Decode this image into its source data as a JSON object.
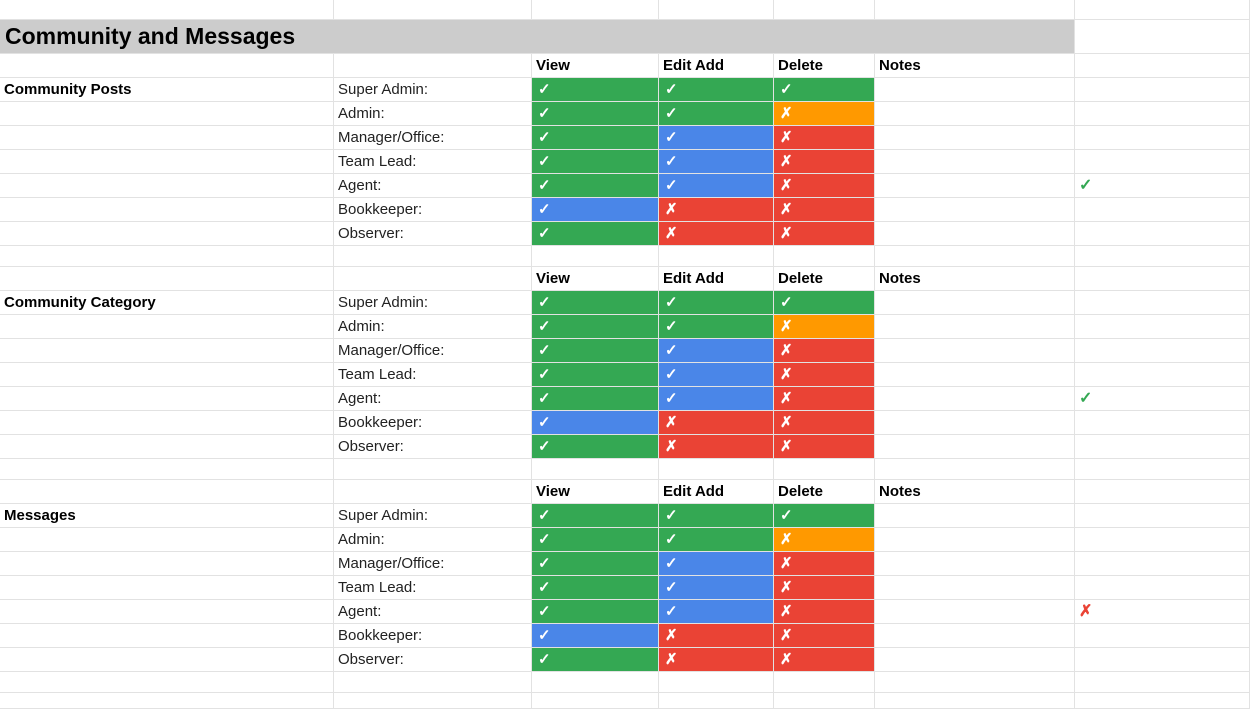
{
  "sheet": {
    "title": "Community and Messages",
    "column_headers": [
      "View",
      "Edit Add",
      "Delete",
      "Notes"
    ],
    "colors": {
      "allowed_full": "#34a853",
      "allowed_partial": "#4a86e8",
      "denied": "#ea4335",
      "denied_warning": "#ff9900",
      "header_band": "#cccccc"
    },
    "sections": [
      {
        "name": "Community Posts",
        "side_mark": "✓",
        "side_mark_color": "#34a853",
        "rows": [
          {
            "role": "Super Admin:",
            "view": "✓",
            "view_color": "green",
            "edit": "✓",
            "edit_color": "green",
            "delete": "✓",
            "delete_color": "green"
          },
          {
            "role": "Admin:",
            "view": "✓",
            "view_color": "green",
            "edit": "✓",
            "edit_color": "green",
            "delete": "✗",
            "delete_color": "orange"
          },
          {
            "role": "Manager/Office:",
            "view": "✓",
            "view_color": "green",
            "edit": "✓",
            "edit_color": "blue",
            "delete": "✗",
            "delete_color": "red"
          },
          {
            "role": "Team Lead:",
            "view": "✓",
            "view_color": "green",
            "edit": "✓",
            "edit_color": "blue",
            "delete": "✗",
            "delete_color": "red"
          },
          {
            "role": "Agent:",
            "view": "✓",
            "view_color": "green",
            "edit": "✓",
            "edit_color": "blue",
            "delete": "✗",
            "delete_color": "red"
          },
          {
            "role": "Bookkeeper:",
            "view": "✓",
            "view_color": "blue",
            "edit": "✗",
            "edit_color": "red",
            "delete": "✗",
            "delete_color": "red"
          },
          {
            "role": "Observer:",
            "view": "✓",
            "view_color": "green",
            "edit": "✗",
            "edit_color": "red",
            "delete": "✗",
            "delete_color": "red"
          }
        ]
      },
      {
        "name": "Community Category",
        "side_mark": "✓",
        "side_mark_color": "#34a853",
        "rows": [
          {
            "role": "Super Admin:",
            "view": "✓",
            "view_color": "green",
            "edit": "✓",
            "edit_color": "green",
            "delete": "✓",
            "delete_color": "green"
          },
          {
            "role": "Admin:",
            "view": "✓",
            "view_color": "green",
            "edit": "✓",
            "edit_color": "green",
            "delete": "✗",
            "delete_color": "orange"
          },
          {
            "role": "Manager/Office:",
            "view": "✓",
            "view_color": "green",
            "edit": "✓",
            "edit_color": "blue",
            "delete": "✗",
            "delete_color": "red"
          },
          {
            "role": "Team Lead:",
            "view": "✓",
            "view_color": "green",
            "edit": "✓",
            "edit_color": "blue",
            "delete": "✗",
            "delete_color": "red"
          },
          {
            "role": "Agent:",
            "view": "✓",
            "view_color": "green",
            "edit": "✓",
            "edit_color": "blue",
            "delete": "✗",
            "delete_color": "red"
          },
          {
            "role": "Bookkeeper:",
            "view": "✓",
            "view_color": "blue",
            "edit": "✗",
            "edit_color": "red",
            "delete": "✗",
            "delete_color": "red"
          },
          {
            "role": "Observer:",
            "view": "✓",
            "view_color": "green",
            "edit": "✗",
            "edit_color": "red",
            "delete": "✗",
            "delete_color": "red"
          }
        ]
      },
      {
        "name": "Messages",
        "side_mark": "✗",
        "side_mark_color": "#ea4335",
        "rows": [
          {
            "role": "Super Admin:",
            "view": "✓",
            "view_color": "green",
            "edit": "✓",
            "edit_color": "green",
            "delete": "✓",
            "delete_color": "green"
          },
          {
            "role": "Admin:",
            "view": "✓",
            "view_color": "green",
            "edit": "✓",
            "edit_color": "green",
            "delete": "✗",
            "delete_color": "orange"
          },
          {
            "role": "Manager/Office:",
            "view": "✓",
            "view_color": "green",
            "edit": "✓",
            "edit_color": "blue",
            "delete": "✗",
            "delete_color": "red"
          },
          {
            "role": "Team Lead:",
            "view": "✓",
            "view_color": "green",
            "edit": "✓",
            "edit_color": "blue",
            "delete": "✗",
            "delete_color": "red"
          },
          {
            "role": "Agent:",
            "view": "✓",
            "view_color": "green",
            "edit": "✓",
            "edit_color": "blue",
            "delete": "✗",
            "delete_color": "red"
          },
          {
            "role": "Bookkeeper:",
            "view": "✓",
            "view_color": "blue",
            "edit": "✗",
            "edit_color": "red",
            "delete": "✗",
            "delete_color": "red"
          },
          {
            "role": "Observer:",
            "view": "✓",
            "view_color": "green",
            "edit": "✗",
            "edit_color": "red",
            "delete": "✗",
            "delete_color": "red"
          }
        ]
      }
    ]
  }
}
